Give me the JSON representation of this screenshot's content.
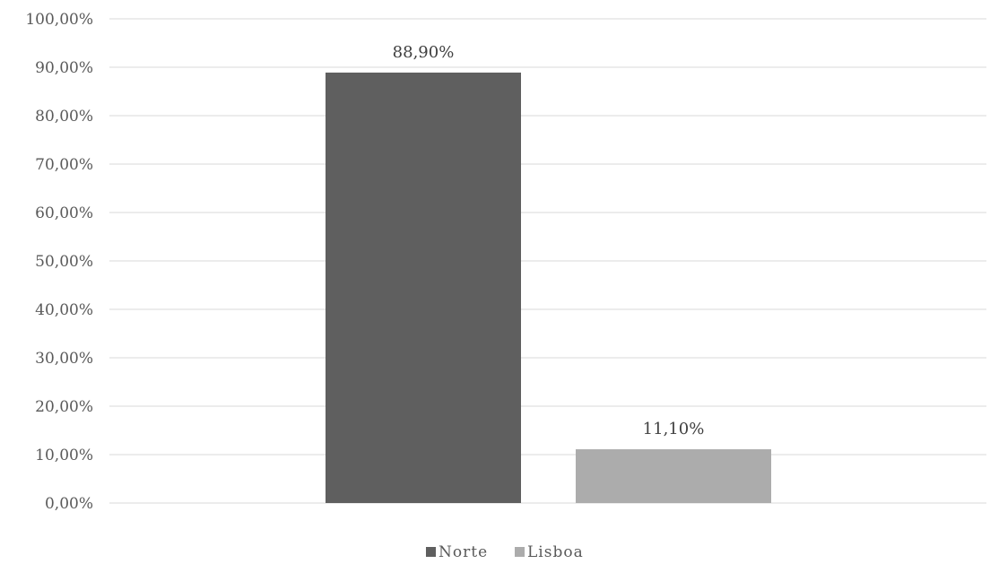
{
  "chart_data": {
    "type": "bar",
    "categories": [
      "Norte",
      "Lisboa"
    ],
    "values": [
      88.9,
      11.1
    ],
    "value_labels": [
      "88,90%",
      "11,10%"
    ],
    "colors": [
      "#5f5f5f",
      "#acacac"
    ],
    "ylim": [
      0,
      100
    ],
    "y_ticks": [
      {
        "value": 0,
        "label": "0,00%"
      },
      {
        "value": 10,
        "label": "10,00%"
      },
      {
        "value": 20,
        "label": "20,00%"
      },
      {
        "value": 30,
        "label": "30,00%"
      },
      {
        "value": 40,
        "label": "40,00%"
      },
      {
        "value": 50,
        "label": "50,00%"
      },
      {
        "value": 60,
        "label": "60,00%"
      },
      {
        "value": 70,
        "label": "70,00%"
      },
      {
        "value": 80,
        "label": "80,00%"
      },
      {
        "value": 90,
        "label": "90,00%"
      },
      {
        "value": 100,
        "label": "100,00%"
      }
    ],
    "grid": true,
    "legend_position": "bottom",
    "title": "",
    "xlabel": "",
    "ylabel": ""
  }
}
